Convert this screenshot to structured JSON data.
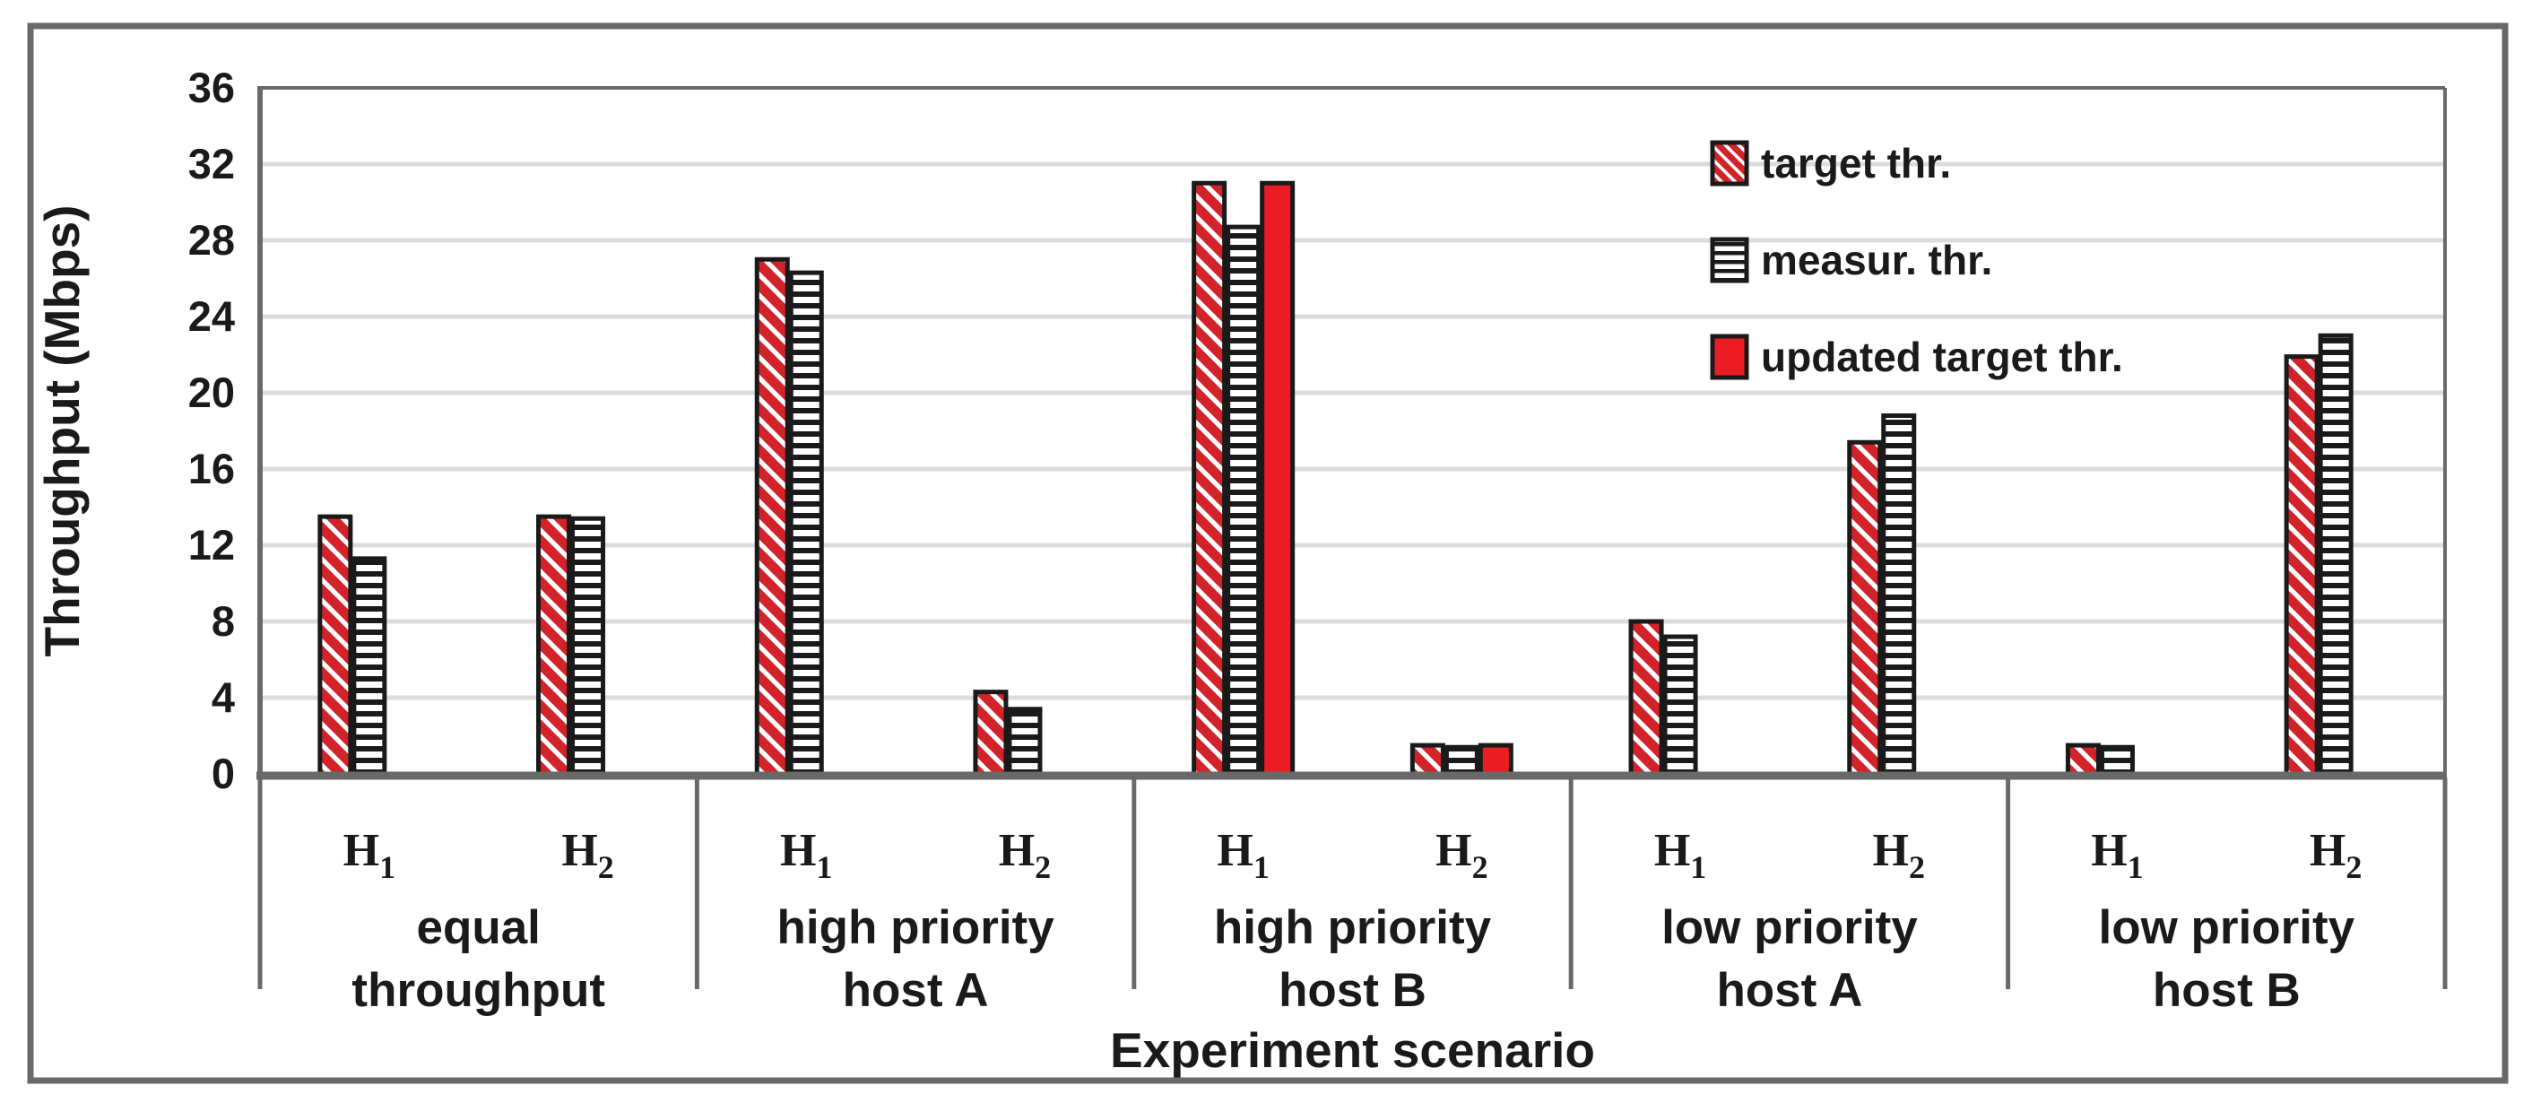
{
  "figure": {
    "background": "#FFFFFF",
    "border_color": "#696969"
  },
  "chart_data": {
    "type": "bar",
    "title": "",
    "ylabel": "Throughput (Mbps)",
    "xlabel": "Experiment scenario",
    "ylim": [
      0,
      36
    ],
    "yticks": [
      0,
      4,
      8,
      12,
      16,
      20,
      24,
      28,
      32,
      36
    ],
    "grid": "horizontal",
    "legend": {
      "position": "top-right-inside",
      "entries": [
        {
          "label": "target thr.",
          "style": "diagonal-red-stripes"
        },
        {
          "label": "measur. thr.",
          "style": "horizontal-black-stripes"
        },
        {
          "label": "updated target thr.",
          "style": "solid-red"
        }
      ]
    },
    "series_keys": [
      "target",
      "measured",
      "updated"
    ],
    "groups": [
      {
        "label_lines": [
          "equal",
          "throughput"
        ],
        "categories": [
          {
            "host": "H",
            "subscript": "1",
            "target": 13.5,
            "measured": 11.3,
            "updated": null
          },
          {
            "host": "H",
            "subscript": "2",
            "target": 13.5,
            "measured": 13.4,
            "updated": null
          }
        ]
      },
      {
        "label_lines": [
          "high priority",
          "host A"
        ],
        "categories": [
          {
            "host": "H",
            "subscript": "1",
            "target": 27.0,
            "measured": 26.3,
            "updated": null
          },
          {
            "host": "H",
            "subscript": "2",
            "target": 4.3,
            "measured": 3.4,
            "updated": null
          }
        ]
      },
      {
        "label_lines": [
          "high priority",
          "host B"
        ],
        "categories": [
          {
            "host": "H",
            "subscript": "1",
            "target": 31.0,
            "measured": 28.7,
            "updated": 31.0
          },
          {
            "host": "H",
            "subscript": "2",
            "target": 1.5,
            "measured": 1.4,
            "updated": 1.5
          }
        ]
      },
      {
        "label_lines": [
          "low priority",
          "host A"
        ],
        "categories": [
          {
            "host": "H",
            "subscript": "1",
            "target": 8.0,
            "measured": 7.2,
            "updated": null
          },
          {
            "host": "H",
            "subscript": "2",
            "target": 17.4,
            "measured": 18.8,
            "updated": null
          }
        ]
      },
      {
        "label_lines": [
          "low priority",
          "host B"
        ],
        "categories": [
          {
            "host": "H",
            "subscript": "1",
            "target": 1.5,
            "measured": 1.4,
            "updated": null
          },
          {
            "host": "H",
            "subscript": "2",
            "target": 21.9,
            "measured": 23.0,
            "updated": null
          }
        ]
      }
    ],
    "colors": {
      "stripe_red": "#D2232A",
      "solid_red": "#EC1C24",
      "bar_border": "#1A1A1A",
      "text": "#1A1A1A",
      "gridline": "#DCDCDC",
      "axis_gray": "#696969"
    }
  }
}
